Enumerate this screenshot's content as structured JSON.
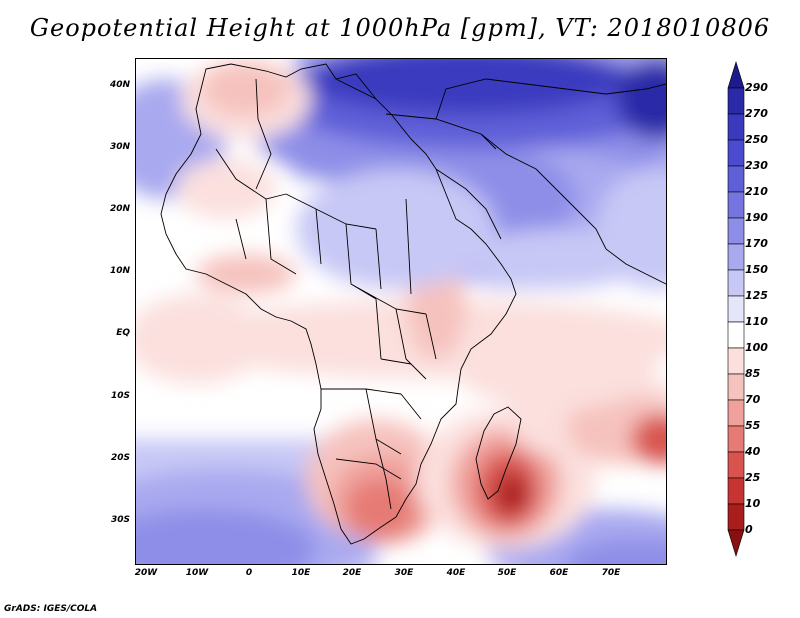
{
  "title": "Geopotential Height at 1000hPa [gpm], VT: 2018010806",
  "credit": "GrADS: IGES/COLA",
  "axes": {
    "lat_labels": [
      "40N",
      "30N",
      "20N",
      "10N",
      "EQ",
      "10S",
      "20S",
      "30S"
    ],
    "lon_labels": [
      "20W",
      "10W",
      "0",
      "10E",
      "20E",
      "30E",
      "40E",
      "50E",
      "60E",
      "70E"
    ]
  },
  "colorbar": {
    "levels": [
      "290",
      "270",
      "250",
      "230",
      "210",
      "190",
      "170",
      "150",
      "125",
      "110",
      "100",
      "85",
      "70",
      "55",
      "40",
      "25",
      "10",
      "0"
    ],
    "colors": [
      "#1c1a8c",
      "#2a2aa8",
      "#3a3abf",
      "#4b4bcf",
      "#5f5fd8",
      "#7575e0",
      "#8e8ee8",
      "#a9a9f0",
      "#c8c8f6",
      "#e6e6fb",
      "#ffffff",
      "#fbe0de",
      "#f6c2be",
      "#f0a19c",
      "#e67a74",
      "#d9544f",
      "#c73532",
      "#a91d1d",
      "#8a0f10"
    ]
  }
}
